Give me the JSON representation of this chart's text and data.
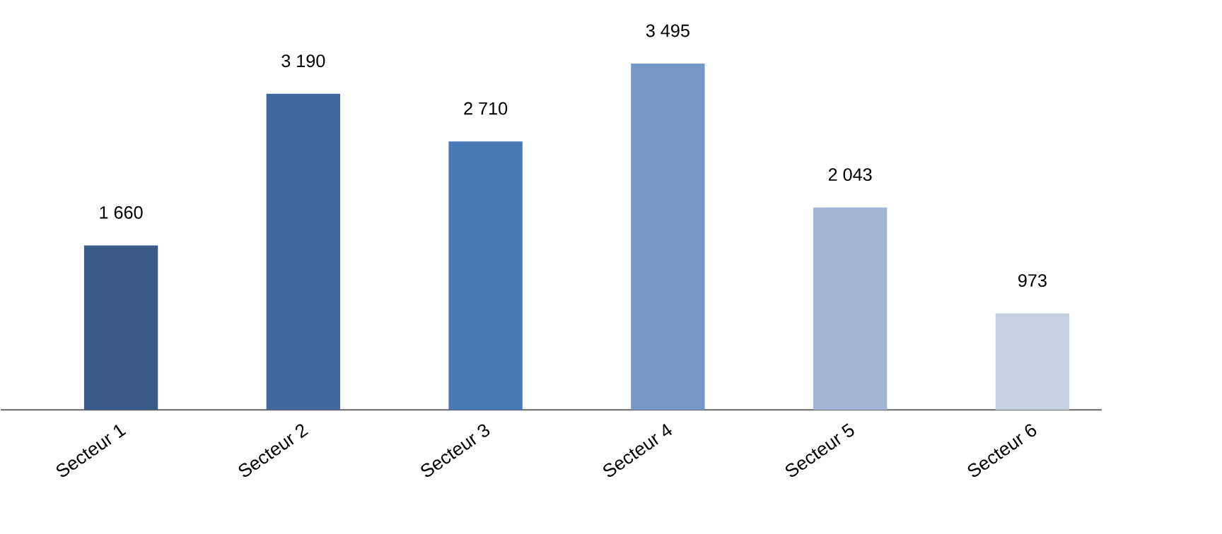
{
  "chart_data": {
    "type": "bar",
    "categories": [
      "Secteur 1",
      "Secteur 2",
      "Secteur 3",
      "Secteur 4",
      "Secteur 5",
      "Secteur 6"
    ],
    "values": [
      1660,
      3190,
      2710,
      3495,
      2043,
      973
    ],
    "value_labels": [
      "1 660",
      "3 190",
      "2 710",
      "3 495",
      "2 043",
      "973"
    ],
    "colors": [
      "#3a5a87",
      "#41699f",
      "#4a7ab5",
      "#7698c9",
      "#a3b6d6",
      "#c5d0e3"
    ]
  }
}
